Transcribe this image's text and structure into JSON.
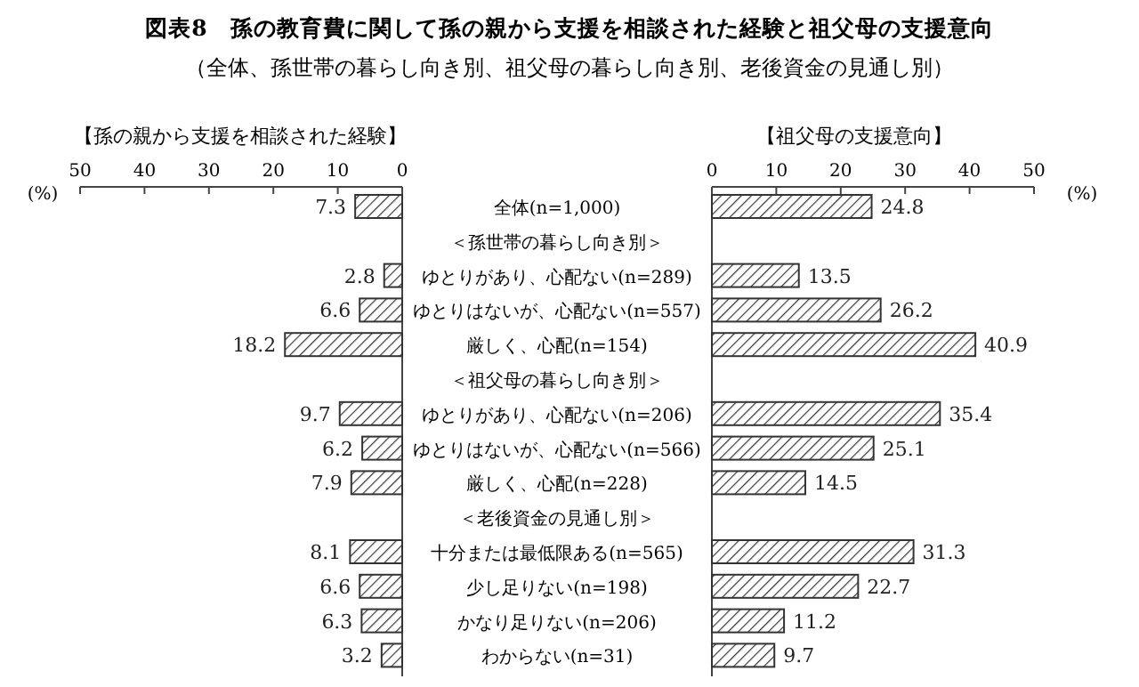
{
  "chart_data": [
    {
      "type": "bar",
      "orientation": "horizontal",
      "title": "図表8　孫の教育費に関して孫の親から支援を相談された経験と祖父母の支援意向",
      "subtitle": "（全体、孫世帯の暮らし向き別、祖父母の暮らし向き別、老後資金の見通し別）",
      "annotations": [
        "【孫の親から支援を相談された経験】"
      ],
      "xlabel": "(%)",
      "categories": [
        "全体(n=1,000)",
        "＜孫世帯の暮らし向き別＞",
        "ゆとりがあり、心配ない(n=289)",
        "ゆとりはないが、心配ない(n=557)",
        "厳しく、心配(n=154)",
        "＜祖父母の暮らし向き別＞",
        "ゆとりがあり、心配ない(n=206)",
        "ゆとりはないが、心配ない(n=566)",
        "厳しく、心配(n=228)",
        "＜老後資金の見通し別＞",
        "十分または最低限ある(n=565)",
        "少し足りない(n=198)",
        "かなり足りない(n=206)",
        "わからない(n=31)"
      ],
      "values": [
        7.3,
        null,
        2.8,
        6.6,
        18.2,
        null,
        9.7,
        6.2,
        7.9,
        null,
        8.1,
        6.6,
        6.3,
        3.2
      ],
      "color": "#333333",
      "data_labels": true,
      "xlim": [
        50,
        0
      ],
      "xticks": [
        50,
        40,
        30,
        20,
        10,
        0
      ]
    },
    {
      "type": "bar",
      "orientation": "horizontal",
      "title": "【祖父母の支援意向】",
      "xlabel": "(%)",
      "tick_labels": "x",
      "values": [
        24.8,
        null,
        13.5,
        26.2,
        40.9,
        null,
        35.4,
        25.1,
        14.5,
        null,
        31.3,
        22.7,
        11.2,
        9.7
      ],
      "color": "#333333",
      "data_labels": true,
      "xlim": [
        0,
        50
      ],
      "xticks": [
        0,
        10,
        20,
        30,
        40,
        50
      ]
    }
  ]
}
